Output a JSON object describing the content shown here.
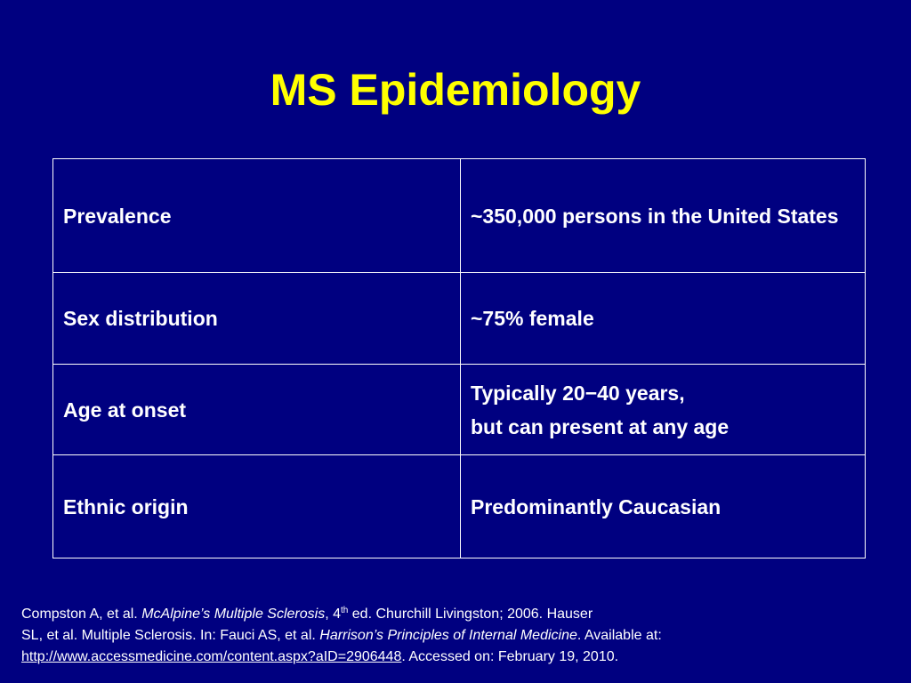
{
  "title": "MS Epidemiology",
  "table": {
    "rows": [
      {
        "label": "Prevalence",
        "value_lines": [
          "~350,000 persons in the United States"
        ]
      },
      {
        "label": "Sex distribution",
        "value_lines": [
          "~75% female"
        ]
      },
      {
        "label": "Age at onset",
        "value_lines": [
          "Typically 20−40 years,",
          "but can present at any age"
        ]
      },
      {
        "label": "Ethnic origin",
        "value_lines": [
          "Predominantly Caucasian"
        ]
      }
    ]
  },
  "citation": {
    "part1": "Compston A, et al. ",
    "book1": "McAlpine’s Multiple Sclerosis",
    "part2": ", 4",
    "sup": "th",
    "part3": " ed. Churchill Livingston; 2006. Hauser",
    "part4": "SL, et al. Multiple Sclerosis. In: Fauci AS, et al. ",
    "book2": "Harrison’s Principles of Internal Medicine",
    "part5": ". Available at:",
    "link": "http://www.accessmedicine.com/content.aspx?aID=2906448",
    "part6": ". Accessed on: February 19, 2010."
  },
  "colors": {
    "background": "#000080",
    "title": "#ffff00",
    "text": "#ffffff"
  }
}
